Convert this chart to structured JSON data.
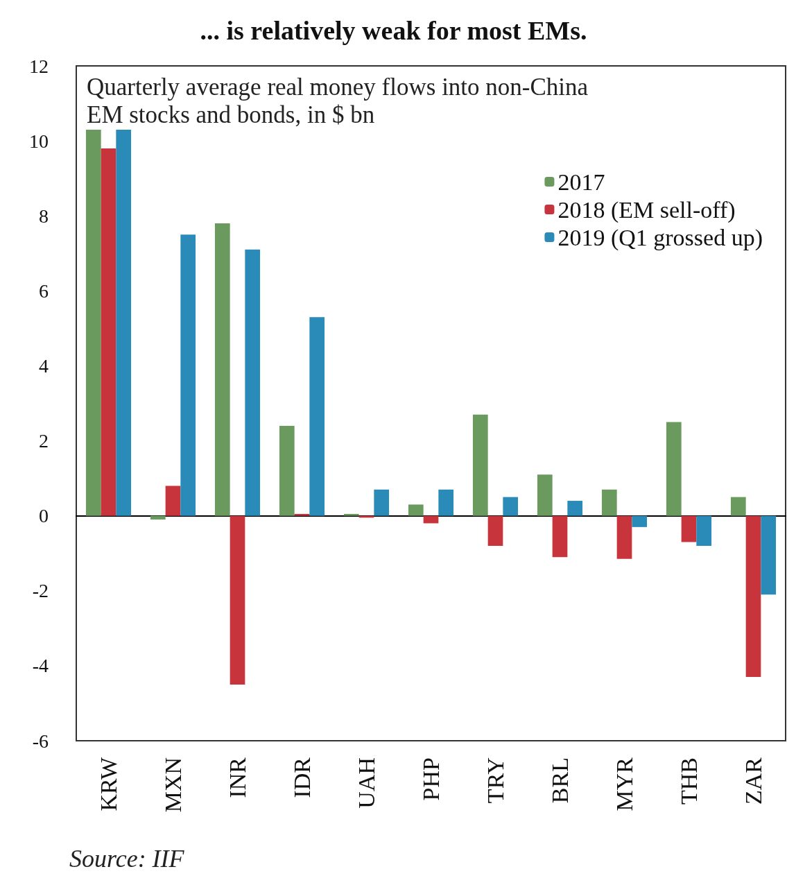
{
  "chart_data": {
    "type": "bar",
    "title": "... is relatively weak for most EMs.",
    "subtitle": "Quarterly average real money flows into non-China\nEM stocks and bonds, in $ bn",
    "categories": [
      "KRW",
      "MXN",
      "INR",
      "IDR",
      "UAH",
      "PHP",
      "TRY",
      "BRL",
      "MYR",
      "THB",
      "ZAR"
    ],
    "series": [
      {
        "name": "2017",
        "color": "#6a9a5e",
        "values": [
          10.3,
          -0.1,
          7.8,
          2.4,
          0.05,
          0.3,
          2.7,
          1.1,
          0.7,
          2.5,
          0.5
        ]
      },
      {
        "name": "2018 (EM sell-off)",
        "color": "#c8343b",
        "values": [
          9.8,
          0.8,
          -4.5,
          0.05,
          -0.05,
          -0.2,
          -0.8,
          -1.1,
          -1.15,
          -0.7,
          -4.3
        ]
      },
      {
        "name": "2019 (Q1 grossed up)",
        "color": "#2a8ab8",
        "values": [
          10.3,
          7.5,
          7.1,
          5.3,
          0.7,
          0.7,
          0.5,
          0.4,
          -0.3,
          -0.8,
          -2.1
        ]
      }
    ],
    "ylim": [
      -6,
      12
    ],
    "yticks": [
      -6,
      -4,
      -2,
      0,
      2,
      4,
      6,
      8,
      10,
      12
    ],
    "legend": "top right",
    "annotations": [
      "Source: IIF"
    ]
  }
}
